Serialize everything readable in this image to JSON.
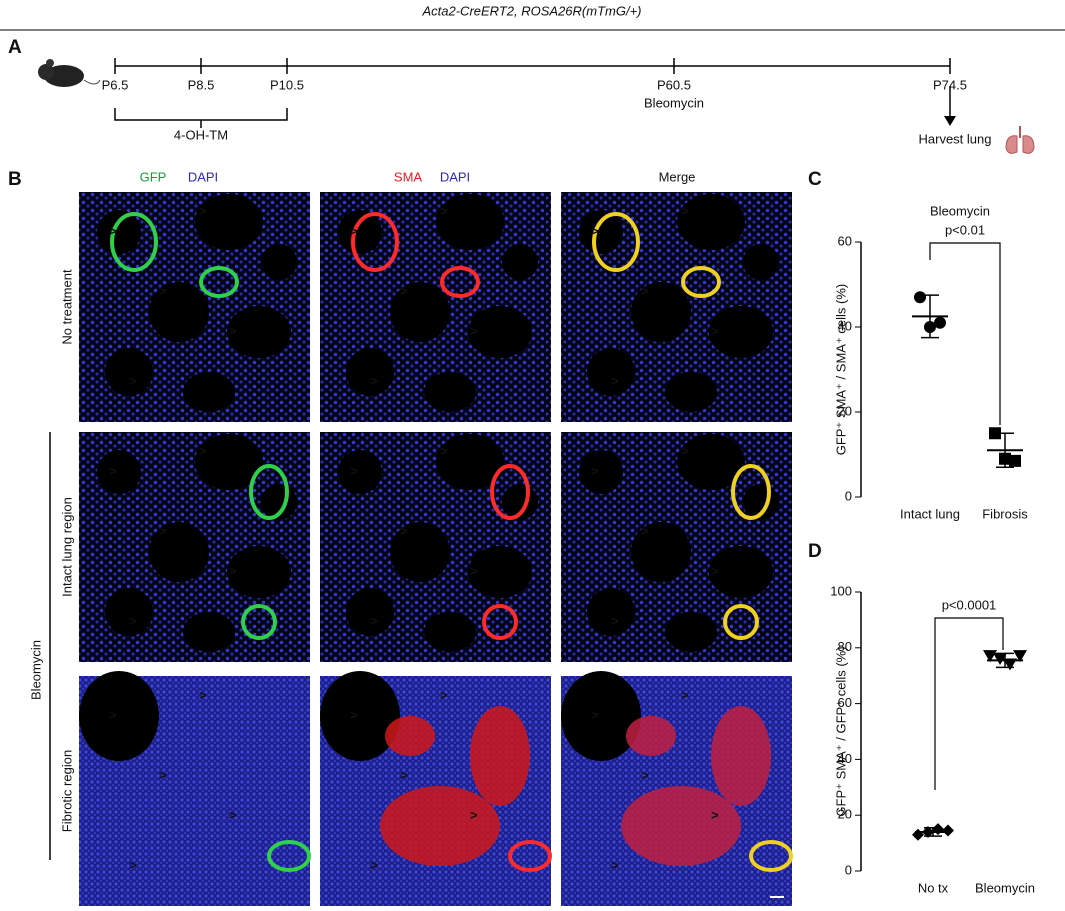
{
  "header": {
    "title": "Acta2-CreERT2, ROSA26R(mTmG/+)"
  },
  "panels": [
    "A",
    "B",
    "C",
    "D"
  ],
  "timeline": {
    "ticks": [
      "P6.5",
      "P8.5",
      "P10.5",
      "P60.5",
      "P74.5"
    ],
    "treatment": "4-OH-TM",
    "injury": "Bleomycin",
    "endpoint": "Harvest lung"
  },
  "images": {
    "columns": [
      [
        "GFP",
        "DAPI"
      ],
      [
        "SMA",
        "DAPI"
      ],
      [
        "Merge"
      ]
    ],
    "rows": [
      "No treatment",
      "Intact lung region",
      "Fibrotic region"
    ],
    "group": "Bleomycin"
  },
  "chart_data": [
    {
      "type": "scatter",
      "title": "Bleomycin",
      "y_label": "GFP⁺ SMA⁺ / SMA⁺ cells (%)",
      "categories": [
        "Intact lung",
        "Fibrosis"
      ],
      "values": [
        [
          47,
          40,
          41
        ],
        [
          15,
          9,
          8.5
        ]
      ],
      "means": [
        42.5,
        11
      ],
      "errors": [
        5,
        4
      ],
      "markers": [
        "circle",
        "square"
      ],
      "color": "#000000",
      "ylim": [
        0,
        60
      ],
      "yticks": [
        0,
        20,
        40,
        60
      ],
      "annotation": "p<0.01"
    },
    {
      "type": "scatter",
      "y_label": "GFP⁺ SMA⁺ / GFP⁺ cells (%)",
      "categories": [
        "No tx",
        "Bleomycin"
      ],
      "values": [
        [
          13,
          14,
          15,
          14.5
        ],
        [
          77,
          76,
          74,
          77
        ]
      ],
      "means": [
        14,
        75.5
      ],
      "errors": [
        1.5,
        2.5
      ],
      "markers": [
        "diamond",
        "triangle"
      ],
      "color": "#000000",
      "ylim": [
        0,
        100
      ],
      "yticks": [
        0,
        20,
        40,
        60,
        80,
        100
      ],
      "annotation": "p<0.0001"
    }
  ]
}
